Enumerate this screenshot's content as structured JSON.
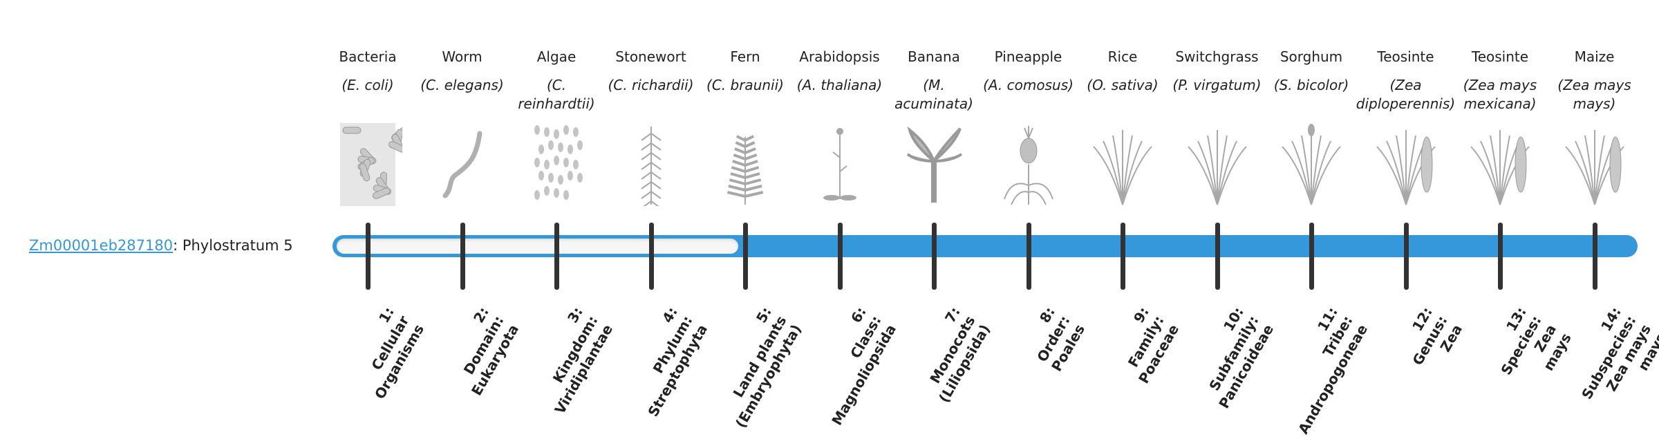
{
  "gene": {
    "id": "Zm00001eb287180",
    "separator": ": ",
    "stratum_label": "Phylostratum 5"
  },
  "phylostratum_value": 5,
  "colors": {
    "accent": "#3498db",
    "tick": "#333333",
    "track_empty": "#f6f6f6"
  },
  "organisms": [
    {
      "name": "Bacteria",
      "scientific": "(E. coli)",
      "icon": "bacteria-icon"
    },
    {
      "name": "Worm",
      "scientific": "(C. elegans)",
      "icon": "worm-icon"
    },
    {
      "name": "Algae",
      "scientific": "(C. reinhardtii)",
      "icon": "algae-icon"
    },
    {
      "name": "Stonewort",
      "scientific": "(C. richardii)",
      "icon": "stonewort-icon"
    },
    {
      "name": "Fern",
      "scientific": "(C. braunii)",
      "icon": "fern-icon"
    },
    {
      "name": "Arabidopsis",
      "scientific": "(A. thaliana)",
      "icon": "arabidopsis-icon"
    },
    {
      "name": "Banana",
      "scientific": "(M. acuminata)",
      "icon": "banana-plant-icon"
    },
    {
      "name": "Pineapple",
      "scientific": "(A. comosus)",
      "icon": "pineapple-icon"
    },
    {
      "name": "Rice",
      "scientific": "(O. sativa)",
      "icon": "rice-icon"
    },
    {
      "name": "Switchgrass",
      "scientific": "(P. virgatum)",
      "icon": "switchgrass-icon"
    },
    {
      "name": "Sorghum",
      "scientific": "(S. bicolor)",
      "icon": "sorghum-icon"
    },
    {
      "name": "Teosinte",
      "scientific": "(Zea diploperennis)",
      "icon": "teosinte-icon"
    },
    {
      "name": "Teosinte",
      "scientific": "(Zea mays mexicana)",
      "icon": "teosinte-icon"
    },
    {
      "name": "Maize",
      "scientific": "(Zea mays mays)",
      "icon": "maize-icon"
    }
  ],
  "strata": [
    [
      "1:",
      "Cellular",
      "Organisms"
    ],
    [
      "2:",
      "Domain:",
      "Eukaryota"
    ],
    [
      "3:",
      "Kingdom:",
      "Viridiplantae"
    ],
    [
      "4:",
      "Phylum:",
      "Streptophyta"
    ],
    [
      "5:",
      "Land plants",
      "(Embryophyta)"
    ],
    [
      "6:",
      "Class:",
      "Magnoliopsida"
    ],
    [
      "7:",
      "Monocots",
      "(Liliopsida)"
    ],
    [
      "8:",
      "Order:",
      "Poales"
    ],
    [
      "9:",
      "Family:",
      "Poaceae"
    ],
    [
      "10:",
      "Subfamily:",
      "Panicoideae"
    ],
    [
      "11:",
      "Tribe:",
      "Andropogoneae"
    ],
    [
      "12:",
      "Genus:",
      "Zea"
    ],
    [
      "13:",
      "Species:",
      "Zea",
      "mays"
    ],
    [
      "14:",
      "Subspecies:",
      "Zea mays",
      "mays"
    ]
  ]
}
